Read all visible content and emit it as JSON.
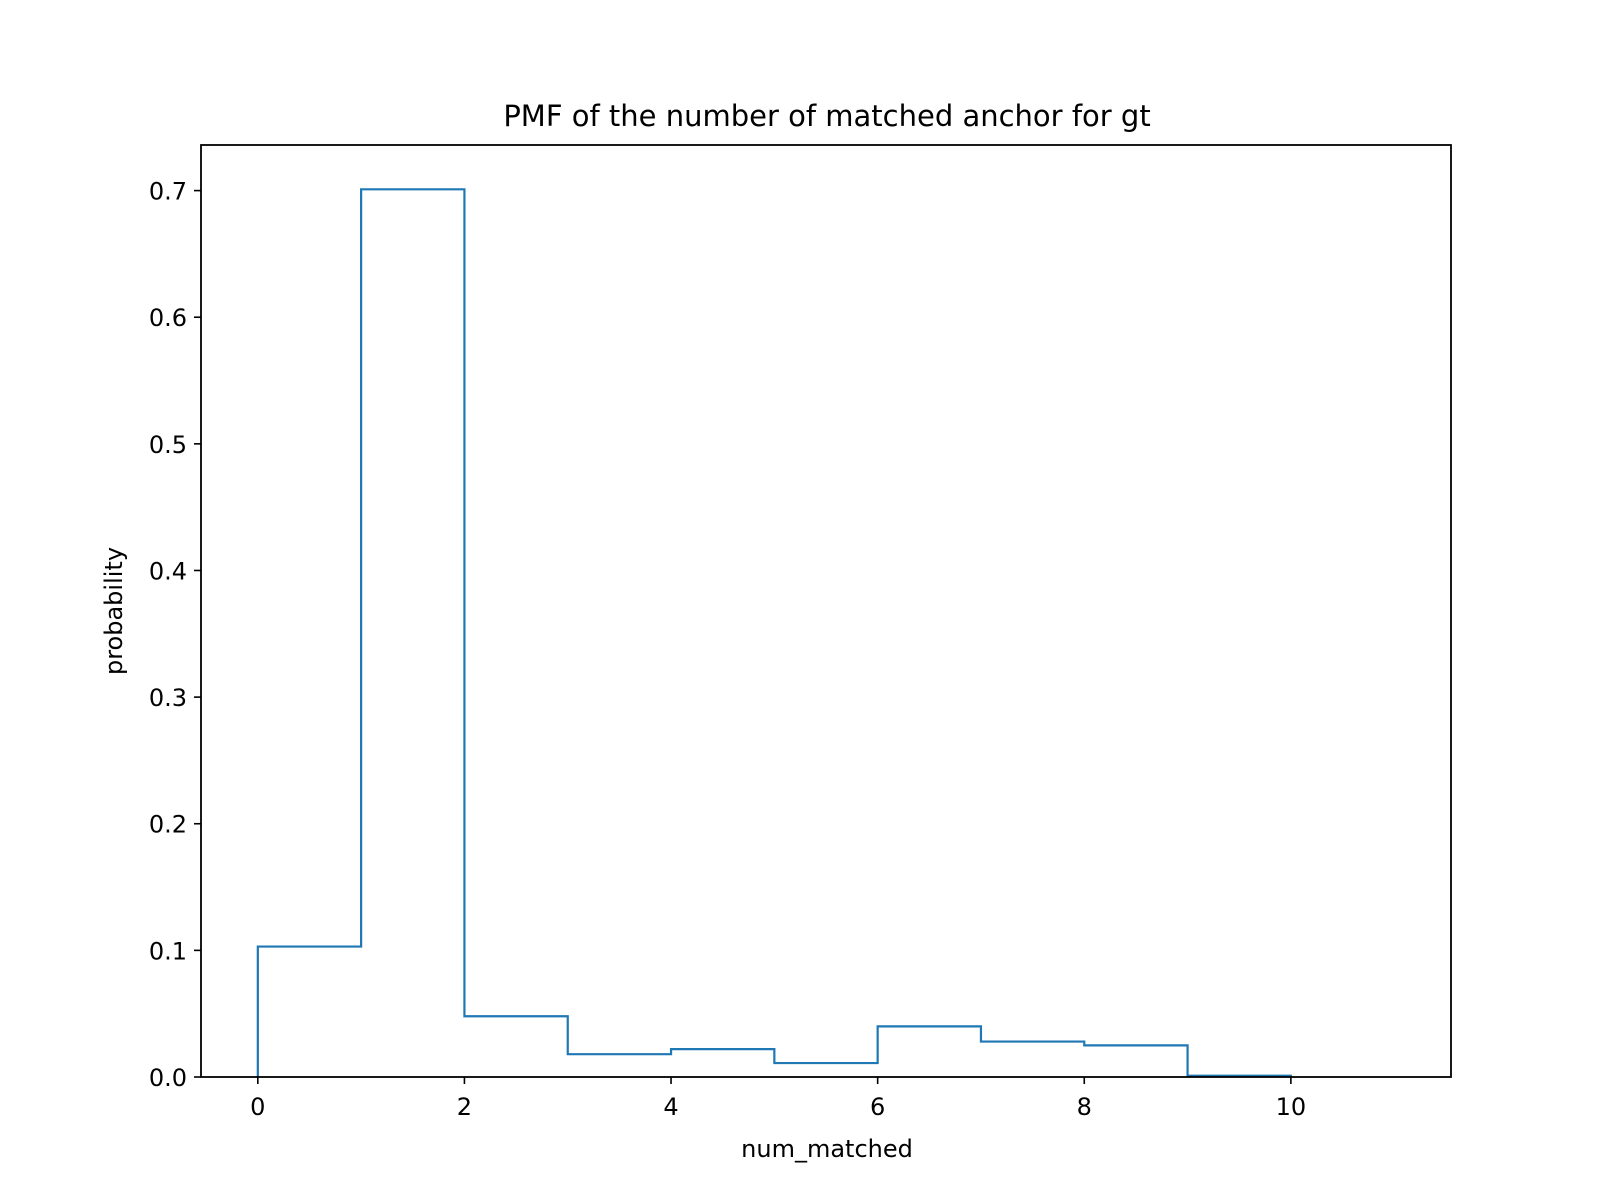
{
  "chart_data": {
    "type": "bar",
    "title": "PMF of the number of matched anchor for gt",
    "xlabel": "num_matched",
    "ylabel": "probability",
    "bin_edges": [
      0,
      1,
      2,
      3,
      4,
      5,
      6,
      7,
      8,
      9,
      10
    ],
    "values": [
      0.103,
      0.701,
      0.048,
      0.018,
      0.022,
      0.011,
      0.04,
      0.028,
      0.025,
      0.001
    ],
    "xlim": [
      -0.55,
      11.55
    ],
    "ylim": [
      0,
      0.736
    ],
    "xticks": [
      0,
      2,
      4,
      6,
      8,
      10
    ],
    "xtick_labels": [
      "0",
      "2",
      "4",
      "6",
      "8",
      "10"
    ],
    "yticks": [
      0.0,
      0.1,
      0.2,
      0.3,
      0.4,
      0.5,
      0.6,
      0.7
    ],
    "ytick_labels": [
      "0.0",
      "0.1",
      "0.2",
      "0.3",
      "0.4",
      "0.5",
      "0.6",
      "0.7"
    ],
    "histtype": "step",
    "grid": false,
    "legend": "none",
    "line_color": "#1f77b4"
  }
}
